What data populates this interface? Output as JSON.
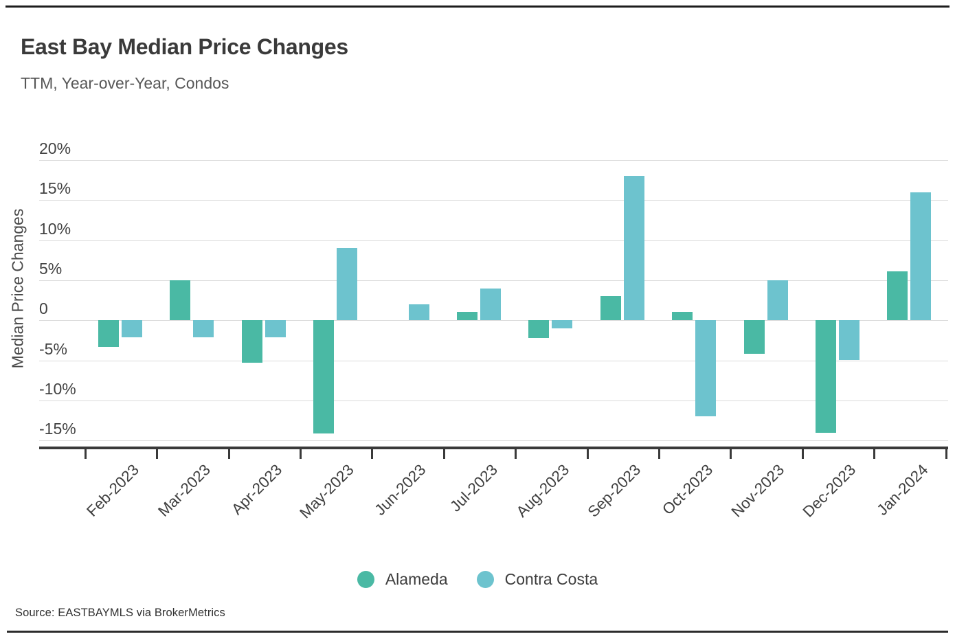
{
  "header": {
    "title": "East Bay Median Price Changes",
    "subtitle": "TTM, Year-over-Year, Condos"
  },
  "footer": {
    "source": "Source:  EASTBAYMLS via BrokerMetrics"
  },
  "legend": {
    "items": [
      "Alameda",
      "Contra Costa"
    ]
  },
  "chart_data": {
    "type": "bar",
    "title": "East Bay Median Price Changes",
    "subtitle": "TTM, Year-over-Year, Condos",
    "xlabel": "",
    "ylabel": "Median Price Changes",
    "unit": "percent",
    "categories": [
      "Feb-2023",
      "Mar-2023",
      "Apr-2023",
      "May-2023",
      "Jun-2023",
      "Jul-2023",
      "Aug-2023",
      "Sep-2023",
      "Oct-2023",
      "Nov-2023",
      "Dec-2023",
      "Jan-2024"
    ],
    "series": [
      {
        "name": "Alameda",
        "color": "#4ab9a4",
        "values": [
          -3.3,
          5.0,
          -5.3,
          -14.1,
          0,
          1.1,
          -2.2,
          3.0,
          1.1,
          -4.2,
          -14.0,
          6.1
        ]
      },
      {
        "name": "Contra Costa",
        "color": "#6dc3ce",
        "values": [
          -2.1,
          -2.1,
          -2.1,
          9.0,
          2.0,
          4.0,
          -1.0,
          18.0,
          -12.0,
          5.0,
          -4.9,
          16.0
        ]
      }
    ],
    "y_ticks": [
      {
        "label": "20%",
        "value": 20
      },
      {
        "label": "15%",
        "value": 15
      },
      {
        "label": "10%",
        "value": 10
      },
      {
        "label": "5%",
        "value": 5
      },
      {
        "label": "0",
        "value": 0
      },
      {
        "label": "-5%",
        "value": -5
      },
      {
        "label": "-10%",
        "value": -10
      },
      {
        "label": "-15%",
        "value": -15
      }
    ],
    "ylim": [
      -15.7,
      20
    ],
    "grid": "horizontal",
    "legend_position": "bottom"
  }
}
